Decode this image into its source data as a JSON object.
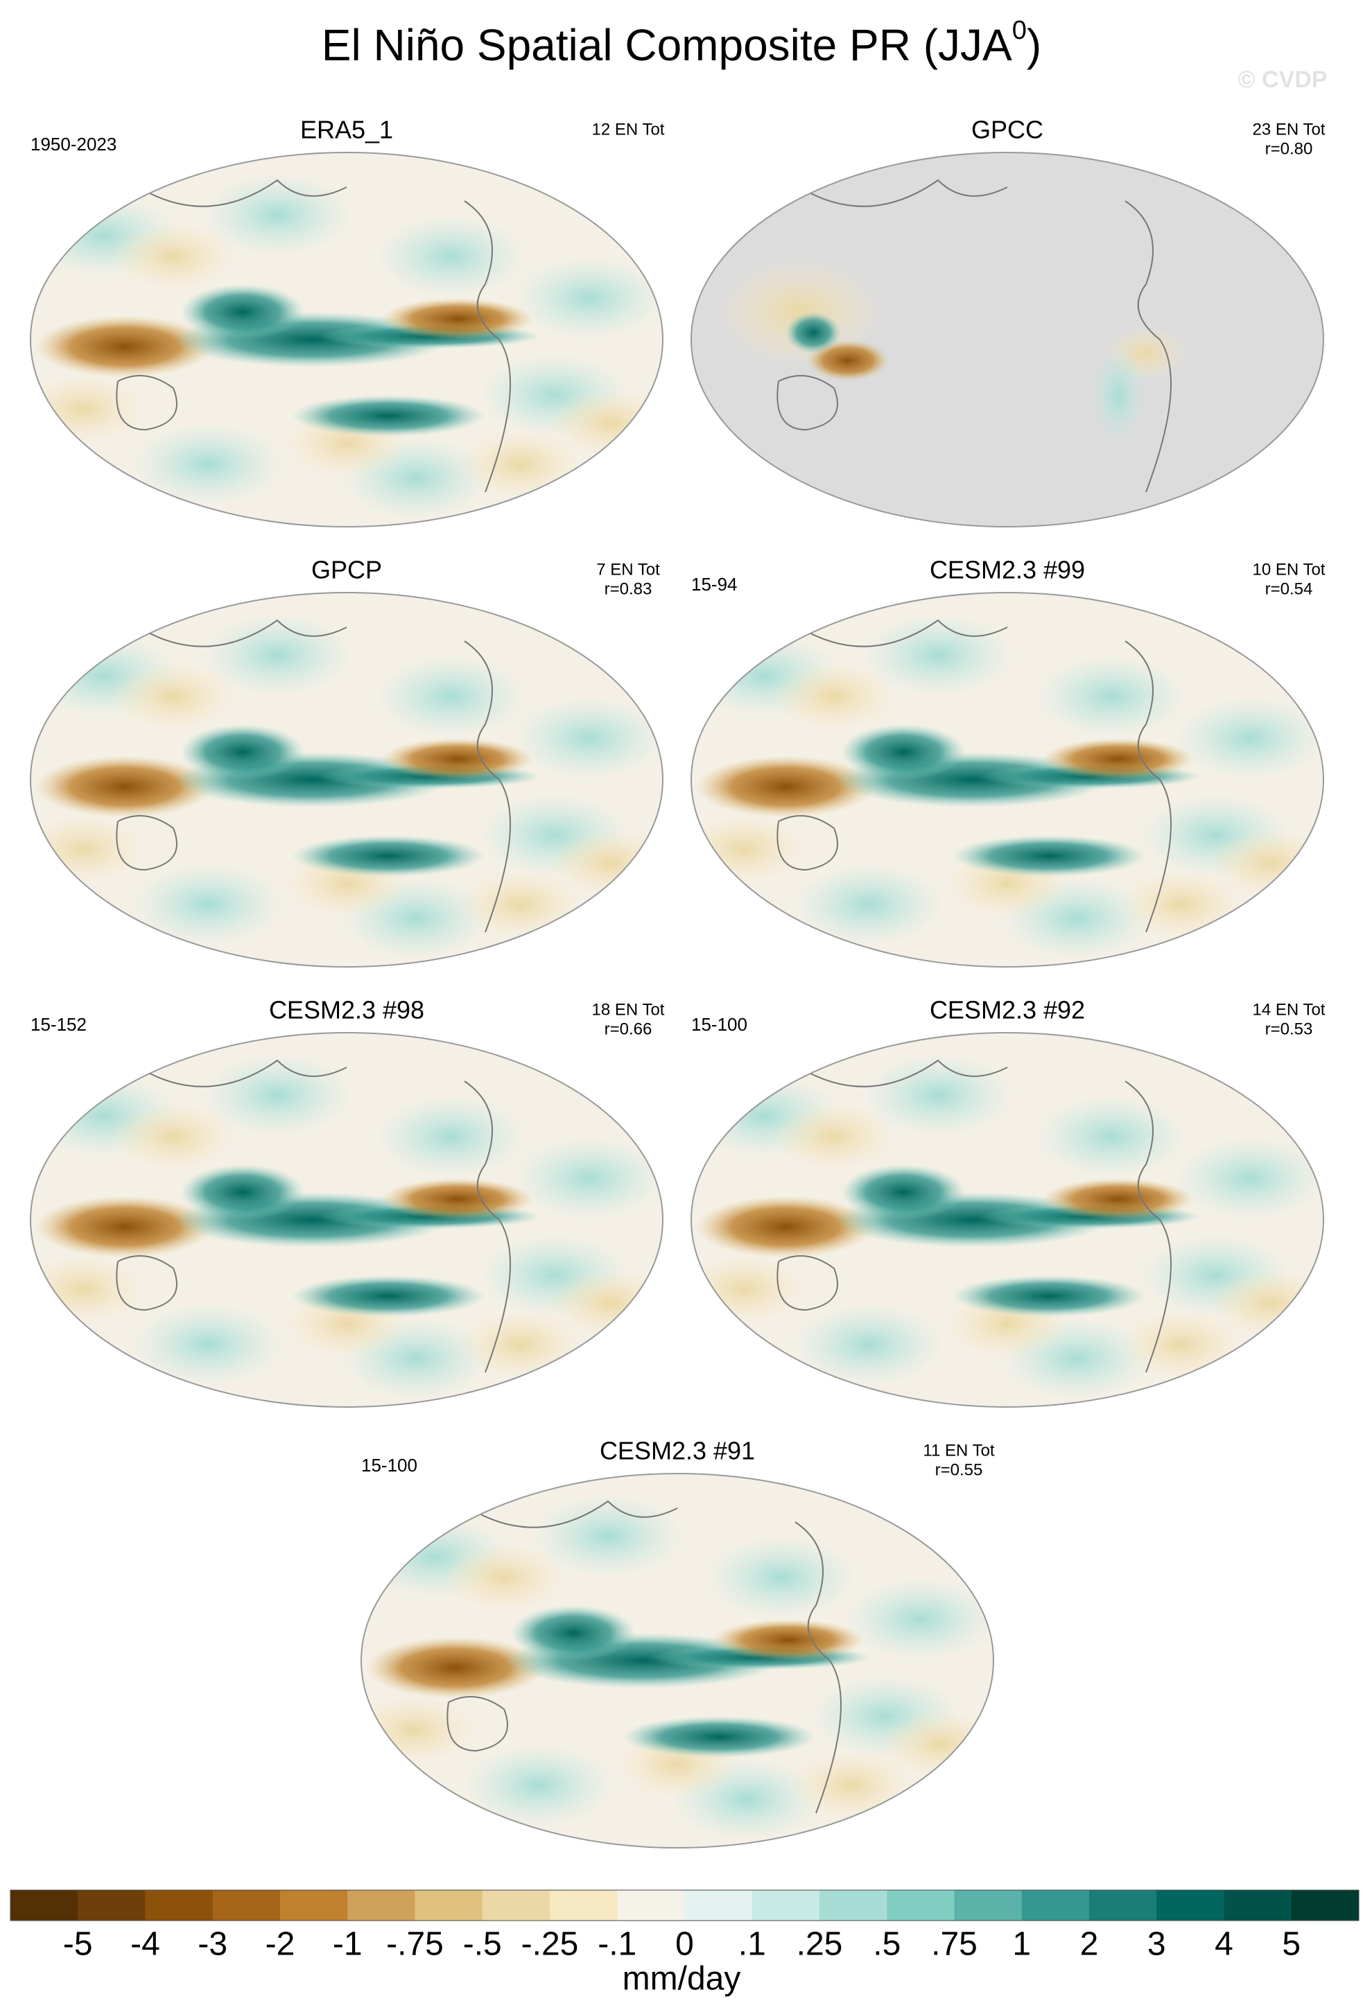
{
  "title_parts": [
    "El Niño Spatial Composite PR (JJA",
    "0",
    ")"
  ],
  "watermark": "© CVDP",
  "panels": [
    {
      "title": "ERA5_1",
      "left_label": "1950-2023",
      "right_lines": [
        "12 EN Tot"
      ],
      "masked": false
    },
    {
      "title": "GPCC",
      "left_label": null,
      "right_lines": [
        "23 EN Tot",
        "r=0.80"
      ],
      "masked": true
    },
    {
      "title": "GPCP",
      "left_label": null,
      "right_lines": [
        "7 EN Tot",
        "r=0.83"
      ],
      "masked": false
    },
    {
      "title": "CESM2.3 #99",
      "left_label": "15-94",
      "right_lines": [
        "10 EN Tot",
        "r=0.54"
      ],
      "masked": false
    },
    {
      "title": "CESM2.3 #98",
      "left_label": "15-152",
      "right_lines": [
        "18 EN Tot",
        "r=0.66"
      ],
      "masked": false
    },
    {
      "title": "CESM2.3 #92",
      "left_label": "15-100",
      "right_lines": [
        "14 EN Tot",
        "r=0.53"
      ],
      "masked": false
    },
    {
      "title": "CESM2.3 #91",
      "left_label": "15-100",
      "right_lines": [
        "11 EN Tot",
        "r=0.55"
      ],
      "masked": false
    }
  ],
  "colorbar": {
    "colors": [
      "#543005",
      "#6f3f0b",
      "#8c510a",
      "#a6661a",
      "#bf812d",
      "#d0a15a",
      "#dfc27d",
      "#ecd8a7",
      "#f6e8c3",
      "#f5f2ea",
      "#e4f2f0",
      "#c7eae5",
      "#a8ddd5",
      "#80cdc1",
      "#5ab2a8",
      "#35978f",
      "#1b7e76",
      "#01665e",
      "#00524a",
      "#003c30"
    ],
    "labels": [
      "-5",
      "-4",
      "-3",
      "-2",
      "-1",
      "-.75",
      "-.5",
      "-.25",
      "-.1",
      "0",
      ".1",
      ".25",
      ".5",
      ".75",
      "1",
      "2",
      "3",
      "4",
      "5"
    ],
    "units": "mm/day"
  }
}
